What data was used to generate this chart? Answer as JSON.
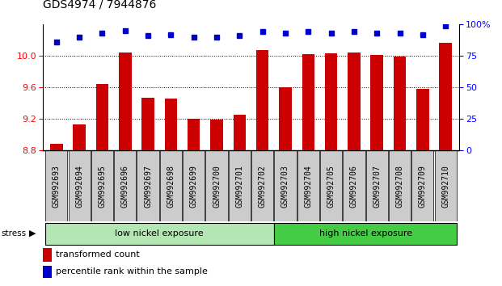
{
  "title": "GDS4974 / 7944876",
  "samples": [
    "GSM992693",
    "GSM992694",
    "GSM992695",
    "GSM992696",
    "GSM992697",
    "GSM992698",
    "GSM992699",
    "GSM992700",
    "GSM992701",
    "GSM992702",
    "GSM992703",
    "GSM992704",
    "GSM992705",
    "GSM992706",
    "GSM992707",
    "GSM992708",
    "GSM992709",
    "GSM992710"
  ],
  "bar_values": [
    8.88,
    9.13,
    9.64,
    10.04,
    9.47,
    9.46,
    9.2,
    9.19,
    9.25,
    10.07,
    9.6,
    10.02,
    10.03,
    10.04,
    10.01,
    9.99,
    9.58,
    10.16
  ],
  "percentile_values": [
    86,
    90,
    93,
    95,
    91,
    92,
    90,
    90,
    91,
    94,
    93,
    94,
    93,
    94,
    93,
    93,
    92,
    99
  ],
  "bar_color": "#cc0000",
  "dot_color": "#0000cc",
  "ylim_left": [
    8.8,
    10.4
  ],
  "ylim_right": [
    0,
    100
  ],
  "yticks_left": [
    8.8,
    9.2,
    9.6,
    10.0
  ],
  "yticks_right": [
    0,
    25,
    50,
    75,
    100
  ],
  "low_nickel_count": 10,
  "high_nickel_count": 8,
  "low_label": "low nickel exposure",
  "high_label": "high nickel exposure",
  "stress_label": "stress",
  "legend_bar": "transformed count",
  "legend_dot": "percentile rank within the sample",
  "low_color": "#b3e6b3",
  "high_color": "#44cc44",
  "label_box_color": "#cccccc",
  "title_fontsize": 10,
  "axis_fontsize": 8,
  "tick_fontsize": 7
}
